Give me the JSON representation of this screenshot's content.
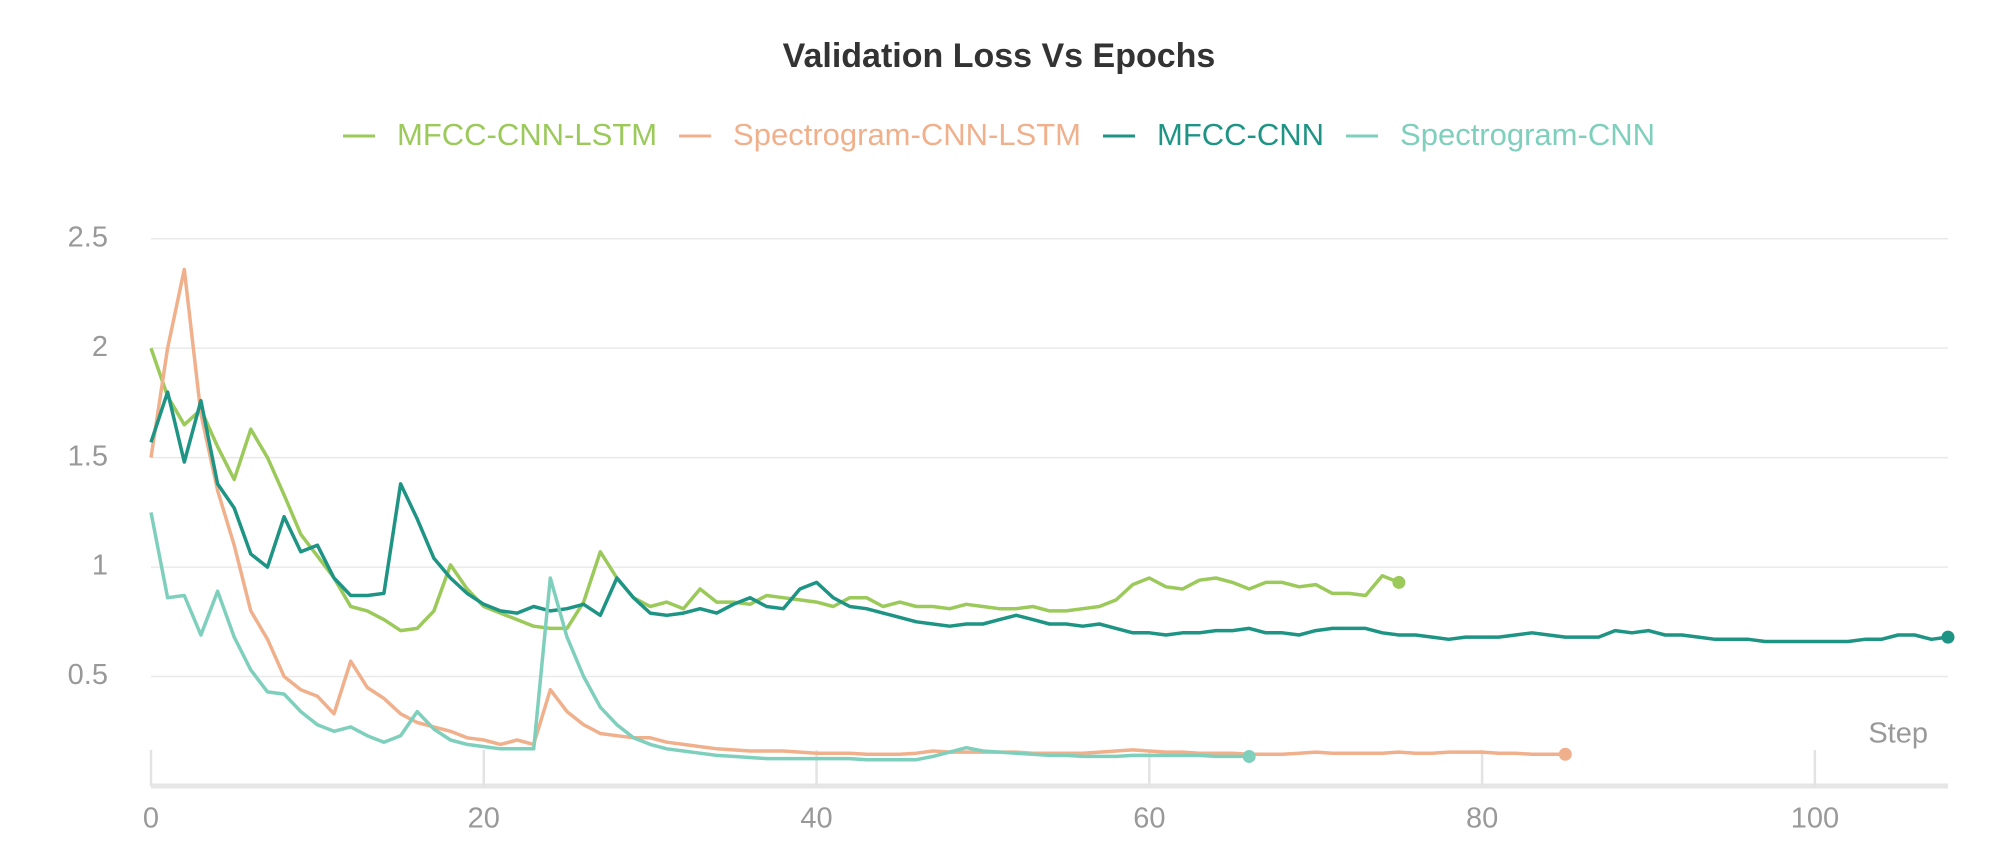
{
  "chart_data": {
    "type": "line",
    "title": "Validation Loss Vs Epochs",
    "x_label": "Step",
    "x": [
      0,
      1,
      2,
      3,
      4,
      5,
      6,
      7,
      8,
      9,
      10,
      11,
      12,
      13,
      14,
      15,
      16,
      17,
      18,
      19,
      20,
      21,
      22,
      23,
      24,
      25,
      26,
      27,
      28,
      29,
      30,
      31,
      32,
      33,
      34,
      35,
      36,
      37,
      38,
      39,
      40,
      41,
      42,
      43,
      44,
      45,
      46,
      47,
      48,
      49,
      50,
      51,
      52,
      53,
      54,
      55,
      56,
      57,
      58,
      59,
      60,
      61,
      62,
      63,
      64,
      65,
      66,
      67,
      68,
      69,
      70,
      71,
      72,
      73,
      74,
      75,
      76,
      77,
      78,
      79,
      80,
      81,
      82,
      83,
      84,
      85,
      86,
      87,
      88,
      89,
      90,
      91,
      92,
      93,
      94,
      95,
      96,
      97,
      98,
      99,
      100,
      101,
      102,
      103,
      104,
      105,
      106,
      107,
      108
    ],
    "xlim": [
      0,
      108
    ],
    "xticks": [
      0,
      20,
      40,
      60,
      80,
      100
    ],
    "ylim": [
      0,
      2.75
    ],
    "yticks": [
      0.5,
      1,
      1.5,
      2,
      2.5
    ],
    "grid": true,
    "legend": "top",
    "series": [
      {
        "name": "MFCC-CNN-LSTM",
        "color": "#9bc95a",
        "values": [
          2.0,
          1.78,
          1.65,
          1.72,
          1.55,
          1.4,
          1.63,
          1.5,
          1.33,
          1.15,
          1.05,
          0.95,
          0.82,
          0.8,
          0.76,
          0.71,
          0.72,
          0.8,
          1.01,
          0.9,
          0.82,
          0.79,
          0.76,
          0.73,
          0.72,
          0.72,
          0.84,
          1.07,
          0.95,
          0.86,
          0.82,
          0.84,
          0.81,
          0.9,
          0.84,
          0.84,
          0.83,
          0.87,
          0.86,
          0.85,
          0.84,
          0.82,
          0.86,
          0.86,
          0.82,
          0.84,
          0.82,
          0.82,
          0.81,
          0.83,
          0.82,
          0.81,
          0.81,
          0.82,
          0.8,
          0.8,
          0.81,
          0.82,
          0.85,
          0.92,
          0.95,
          0.91,
          0.9,
          0.94,
          0.95,
          0.93,
          0.9,
          0.93,
          0.93,
          0.91,
          0.92,
          0.88,
          0.88,
          0.87,
          0.96,
          0.93,
          null,
          null,
          null,
          null,
          null,
          null,
          null,
          null,
          null,
          null,
          null,
          null,
          null,
          null,
          null,
          null,
          null,
          null,
          null,
          null,
          null,
          null,
          null,
          null,
          null,
          null,
          null,
          null,
          null,
          null,
          null,
          null,
          null
        ]
      },
      {
        "name": "Spectrogram-CNN-LSTM",
        "color": "#f0b08c",
        "values": [
          1.5,
          2.0,
          2.36,
          1.7,
          1.35,
          1.1,
          0.8,
          0.67,
          0.5,
          0.44,
          0.41,
          0.33,
          0.57,
          0.45,
          0.4,
          0.33,
          0.29,
          0.27,
          0.25,
          0.22,
          0.21,
          0.19,
          0.21,
          0.19,
          0.44,
          0.34,
          0.28,
          0.24,
          0.23,
          0.22,
          0.22,
          0.2,
          0.19,
          0.18,
          0.17,
          0.165,
          0.16,
          0.16,
          0.16,
          0.155,
          0.15,
          0.15,
          0.15,
          0.145,
          0.145,
          0.145,
          0.15,
          0.16,
          0.155,
          0.155,
          0.155,
          0.155,
          0.155,
          0.15,
          0.15,
          0.15,
          0.15,
          0.155,
          0.16,
          0.165,
          0.16,
          0.155,
          0.155,
          0.15,
          0.15,
          0.15,
          0.145,
          0.145,
          0.145,
          0.15,
          0.155,
          0.15,
          0.15,
          0.15,
          0.15,
          0.155,
          0.15,
          0.15,
          0.155,
          0.155,
          0.155,
          0.15,
          0.15,
          0.145,
          0.145,
          0.145,
          null,
          null,
          null,
          null,
          null,
          null,
          null,
          null,
          null,
          null,
          null,
          null,
          null,
          null,
          null,
          null,
          null,
          null,
          null,
          null,
          null,
          null,
          null
        ]
      },
      {
        "name": "MFCC-CNN",
        "color": "#1e9484",
        "values": [
          1.57,
          1.8,
          1.48,
          1.76,
          1.38,
          1.27,
          1.06,
          1.0,
          1.23,
          1.07,
          1.1,
          0.95,
          0.87,
          0.87,
          0.88,
          1.38,
          1.22,
          1.04,
          0.95,
          0.88,
          0.83,
          0.8,
          0.79,
          0.82,
          0.8,
          0.81,
          0.83,
          0.78,
          0.95,
          0.86,
          0.79,
          0.78,
          0.79,
          0.81,
          0.79,
          0.83,
          0.86,
          0.82,
          0.81,
          0.9,
          0.93,
          0.86,
          0.82,
          0.81,
          0.79,
          0.77,
          0.75,
          0.74,
          0.73,
          0.74,
          0.74,
          0.76,
          0.78,
          0.76,
          0.74,
          0.74,
          0.73,
          0.74,
          0.72,
          0.7,
          0.7,
          0.69,
          0.7,
          0.7,
          0.71,
          0.71,
          0.72,
          0.7,
          0.7,
          0.69,
          0.71,
          0.72,
          0.72,
          0.72,
          0.7,
          0.69,
          0.69,
          0.68,
          0.67,
          0.68,
          0.68,
          0.68,
          0.69,
          0.7,
          0.69,
          0.68,
          0.68,
          0.68,
          0.71,
          0.7,
          0.71,
          0.69,
          0.69,
          0.68,
          0.67,
          0.67,
          0.67,
          0.66,
          0.66,
          0.66,
          0.66,
          0.66,
          0.66,
          0.67,
          0.67,
          0.69,
          0.69,
          0.67,
          0.68
        ]
      },
      {
        "name": "Spectrogram-CNN",
        "color": "#7fcfbd",
        "values": [
          1.25,
          0.86,
          0.87,
          0.69,
          0.89,
          0.68,
          0.53,
          0.43,
          0.42,
          0.34,
          0.28,
          0.25,
          0.27,
          0.23,
          0.2,
          0.23,
          0.34,
          0.26,
          0.21,
          0.19,
          0.18,
          0.17,
          0.17,
          0.17,
          0.95,
          0.68,
          0.5,
          0.36,
          0.28,
          0.22,
          0.19,
          0.17,
          0.16,
          0.15,
          0.14,
          0.135,
          0.13,
          0.125,
          0.125,
          0.125,
          0.125,
          0.125,
          0.125,
          0.12,
          0.12,
          0.12,
          0.12,
          0.135,
          0.155,
          0.175,
          0.16,
          0.155,
          0.15,
          0.145,
          0.14,
          0.14,
          0.135,
          0.135,
          0.135,
          0.14,
          0.14,
          0.14,
          0.14,
          0.14,
          0.135,
          0.135,
          0.135,
          null,
          null,
          null,
          null,
          null,
          null,
          null,
          null,
          null,
          null,
          null,
          null,
          null,
          null,
          null,
          null,
          null,
          null,
          null,
          null,
          null,
          null,
          null,
          null,
          null,
          null,
          null,
          null,
          null,
          null,
          null,
          null,
          null,
          null,
          null,
          null,
          null,
          null,
          null,
          null,
          null,
          null
        ]
      }
    ]
  }
}
